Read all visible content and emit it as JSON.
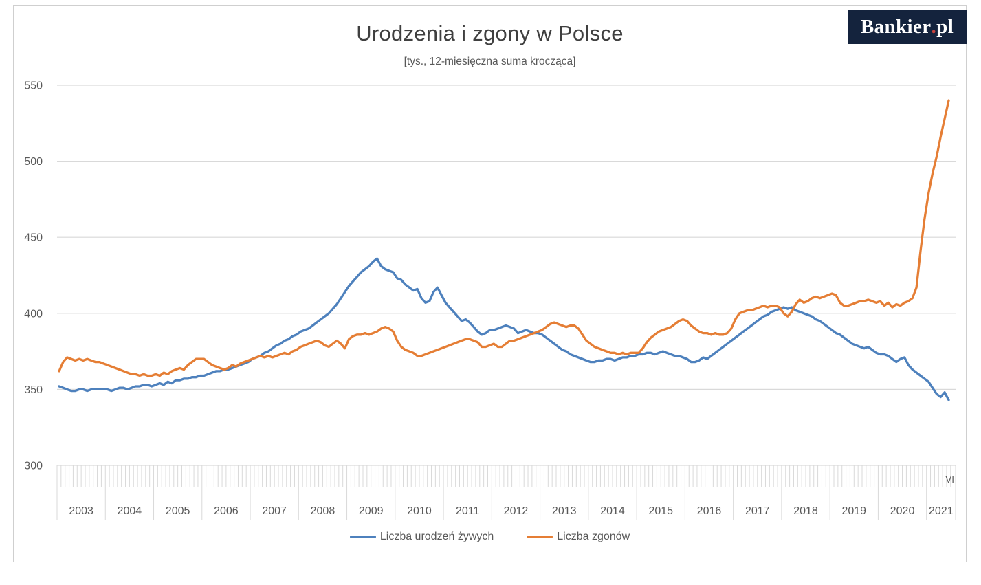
{
  "logo": {
    "main": "Bankier",
    "dot": ".",
    "suffix": "pl",
    "bg_color": "#14233d",
    "dot_color": "#c8413c",
    "text_color": "#ffffff"
  },
  "chart_data": {
    "type": "line",
    "title": "Urodzenia i zgony w Polsce",
    "subtitle": "[tys., 12-miesięczna suma krocząca]",
    "x_unit": "month",
    "x_start": "2003-01",
    "x_end": "2021-06",
    "last_point_label": "VI",
    "year_labels": [
      "2003",
      "2004",
      "2005",
      "2006",
      "2007",
      "2008",
      "2009",
      "2010",
      "2011",
      "2012",
      "2013",
      "2014",
      "2015",
      "2016",
      "2017",
      "2018",
      "2019",
      "2020",
      "2021"
    ],
    "y_ticks": [
      300,
      350,
      400,
      450,
      500,
      550
    ],
    "ylim": [
      300,
      560
    ],
    "grid": true,
    "grid_color": "#d9d9d9",
    "text_color": "#595959",
    "legend_position": "bottom",
    "series": [
      {
        "name": "Liczba urodzeń żywych",
        "color": "#4e81bd",
        "values": [
          352,
          351,
          350,
          349,
          349,
          350,
          350,
          349,
          350,
          350,
          350,
          350,
          350,
          349,
          350,
          351,
          351,
          350,
          351,
          352,
          352,
          353,
          353,
          352,
          353,
          354,
          353,
          355,
          354,
          356,
          356,
          357,
          357,
          358,
          358,
          359,
          359,
          360,
          361,
          362,
          362,
          363,
          363,
          364,
          365,
          366,
          367,
          368,
          370,
          371,
          372,
          374,
          375,
          377,
          379,
          380,
          382,
          383,
          385,
          386,
          388,
          389,
          390,
          392,
          394,
          396,
          398,
          400,
          403,
          406,
          410,
          414,
          418,
          421,
          424,
          427,
          429,
          431,
          434,
          436,
          431,
          429,
          428,
          427,
          423,
          422,
          419,
          417,
          415,
          416,
          410,
          407,
          408,
          414,
          417,
          412,
          407,
          404,
          401,
          398,
          395,
          396,
          394,
          391,
          388,
          386,
          387,
          389,
          389,
          390,
          391,
          392,
          391,
          390,
          387,
          388,
          389,
          388,
          387,
          387,
          386,
          384,
          382,
          380,
          378,
          376,
          375,
          373,
          372,
          371,
          370,
          369,
          368,
          368,
          369,
          369,
          370,
          370,
          369,
          370,
          371,
          371,
          372,
          372,
          373,
          373,
          374,
          374,
          373,
          374,
          375,
          374,
          373,
          372,
          372,
          371,
          370,
          368,
          368,
          369,
          371,
          370,
          372,
          374,
          376,
          378,
          380,
          382,
          384,
          386,
          388,
          390,
          392,
          394,
          396,
          398,
          399,
          401,
          402,
          403,
          404,
          403,
          404,
          402,
          401,
          400,
          399,
          398,
          396,
          395,
          393,
          391,
          389,
          387,
          386,
          384,
          382,
          380,
          379,
          378,
          377,
          378,
          376,
          374,
          373,
          373,
          372,
          370,
          368,
          370,
          371,
          366,
          363,
          361,
          359,
          357,
          355,
          351,
          347,
          345,
          348,
          343
        ]
      },
      {
        "name": "Liczba zgonów",
        "color": "#e57e35",
        "values": [
          362,
          368,
          371,
          370,
          369,
          370,
          369,
          370,
          369,
          368,
          368,
          367,
          366,
          365,
          364,
          363,
          362,
          361,
          360,
          360,
          359,
          360,
          359,
          359,
          360,
          359,
          361,
          360,
          362,
          363,
          364,
          363,
          366,
          368,
          370,
          370,
          370,
          368,
          366,
          365,
          364,
          363,
          364,
          366,
          365,
          367,
          368,
          369,
          370,
          371,
          372,
          371,
          372,
          371,
          372,
          373,
          374,
          373,
          375,
          376,
          378,
          379,
          380,
          381,
          382,
          381,
          379,
          378,
          380,
          382,
          380,
          377,
          383,
          385,
          386,
          386,
          387,
          386,
          387,
          388,
          390,
          391,
          390,
          388,
          382,
          378,
          376,
          375,
          374,
          372,
          372,
          373,
          374,
          375,
          376,
          377,
          378,
          379,
          380,
          381,
          382,
          383,
          383,
          382,
          381,
          378,
          378,
          379,
          380,
          378,
          378,
          380,
          382,
          382,
          383,
          384,
          385,
          386,
          387,
          388,
          389,
          391,
          393,
          394,
          393,
          392,
          391,
          392,
          392,
          390,
          386,
          382,
          380,
          378,
          377,
          376,
          375,
          374,
          374,
          373,
          374,
          373,
          374,
          374,
          374,
          377,
          381,
          384,
          386,
          388,
          389,
          390,
          391,
          393,
          395,
          396,
          395,
          392,
          390,
          388,
          387,
          387,
          386,
          387,
          386,
          386,
          387,
          390,
          396,
          400,
          401,
          402,
          402,
          403,
          404,
          405,
          404,
          405,
          405,
          404,
          400,
          398,
          401,
          406,
          409,
          407,
          408,
          410,
          411,
          410,
          411,
          412,
          413,
          412,
          407,
          405,
          405,
          406,
          407,
          408,
          408,
          409,
          408,
          407,
          408,
          405,
          407,
          404,
          406,
          405,
          407,
          408,
          410,
          417,
          441,
          462,
          479,
          492,
          503,
          516,
          528,
          540
        ]
      }
    ]
  }
}
